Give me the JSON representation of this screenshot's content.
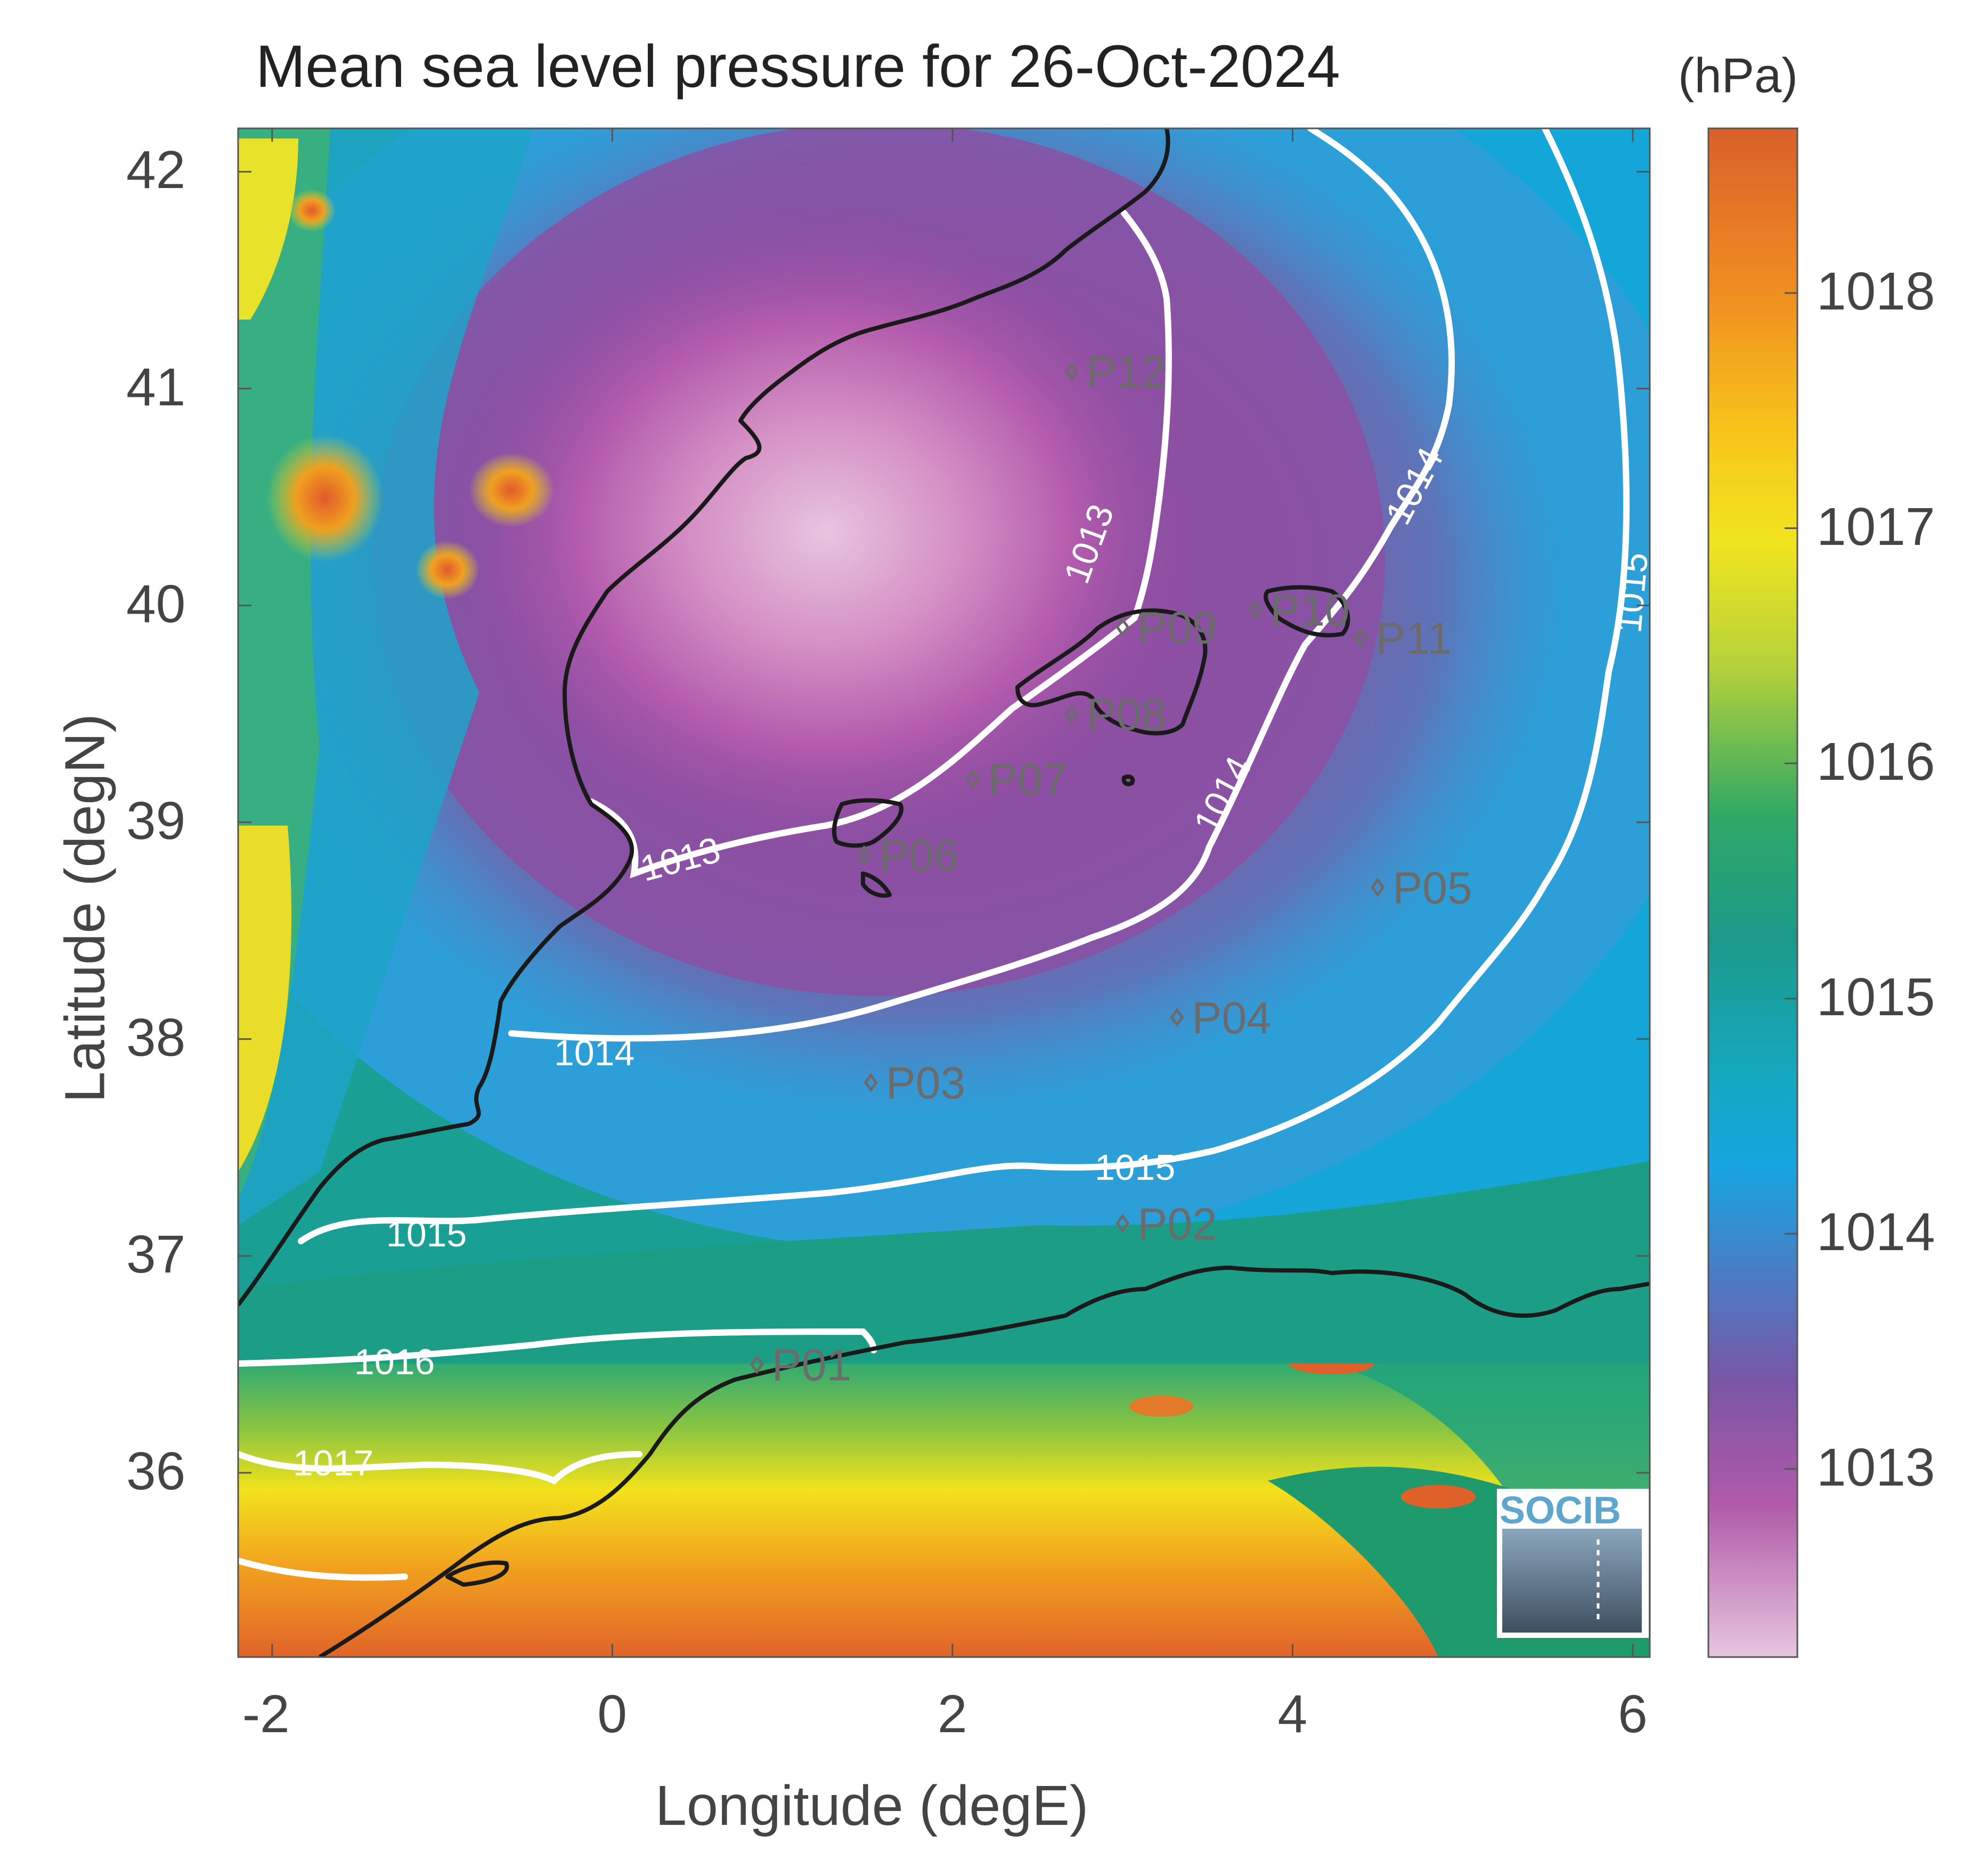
{
  "title": "Mean sea level pressure for 26-Oct-2024",
  "axes": {
    "xlabel": "Longitude (degE)",
    "ylabel": "Latitude (degN)",
    "xticks": [
      "-2",
      "0",
      "2",
      "4",
      "6"
    ],
    "yticks": [
      "42",
      "41",
      "40",
      "39",
      "38",
      "37",
      "36"
    ],
    "xlim": [
      -2.2,
      6.1
    ],
    "ylim": [
      35.15,
      42.2
    ]
  },
  "colorbar": {
    "unit": "(hPa)",
    "ticks": [
      "1018",
      "1017",
      "1016",
      "1015",
      "1014",
      "1013"
    ],
    "range": [
      1012.2,
      1018.7
    ]
  },
  "contours": [
    {
      "level": "1013"
    },
    {
      "level": "1014"
    },
    {
      "level": "1015"
    },
    {
      "level": "1016"
    },
    {
      "level": "1017"
    }
  ],
  "stations": [
    {
      "id": "P01",
      "lon": 0.85,
      "lat": 36.5
    },
    {
      "id": "P02",
      "lon": 3.0,
      "lat": 37.15
    },
    {
      "id": "P03",
      "lon": 1.52,
      "lat": 37.8
    },
    {
      "id": "P04",
      "lon": 3.32,
      "lat": 38.1
    },
    {
      "id": "P05",
      "lon": 4.5,
      "lat": 38.7
    },
    {
      "id": "P06",
      "lon": 1.48,
      "lat": 38.85
    },
    {
      "id": "P07",
      "lon": 2.12,
      "lat": 39.2
    },
    {
      "id": "P08",
      "lon": 2.7,
      "lat": 39.5
    },
    {
      "id": "P09",
      "lon": 3.0,
      "lat": 39.9
    },
    {
      "id": "P10",
      "lon": 3.78,
      "lat": 39.98
    },
    {
      "id": "P11",
      "lon": 4.4,
      "lat": 39.85
    },
    {
      "id": "P12",
      "lon": 2.7,
      "lat": 41.08
    }
  ],
  "logo": "SOCIB",
  "colors": {
    "coast": "#1a1a1a",
    "contour": "#ffffff",
    "station": "#6b6b6b",
    "logo": "#5fa6cf"
  }
}
